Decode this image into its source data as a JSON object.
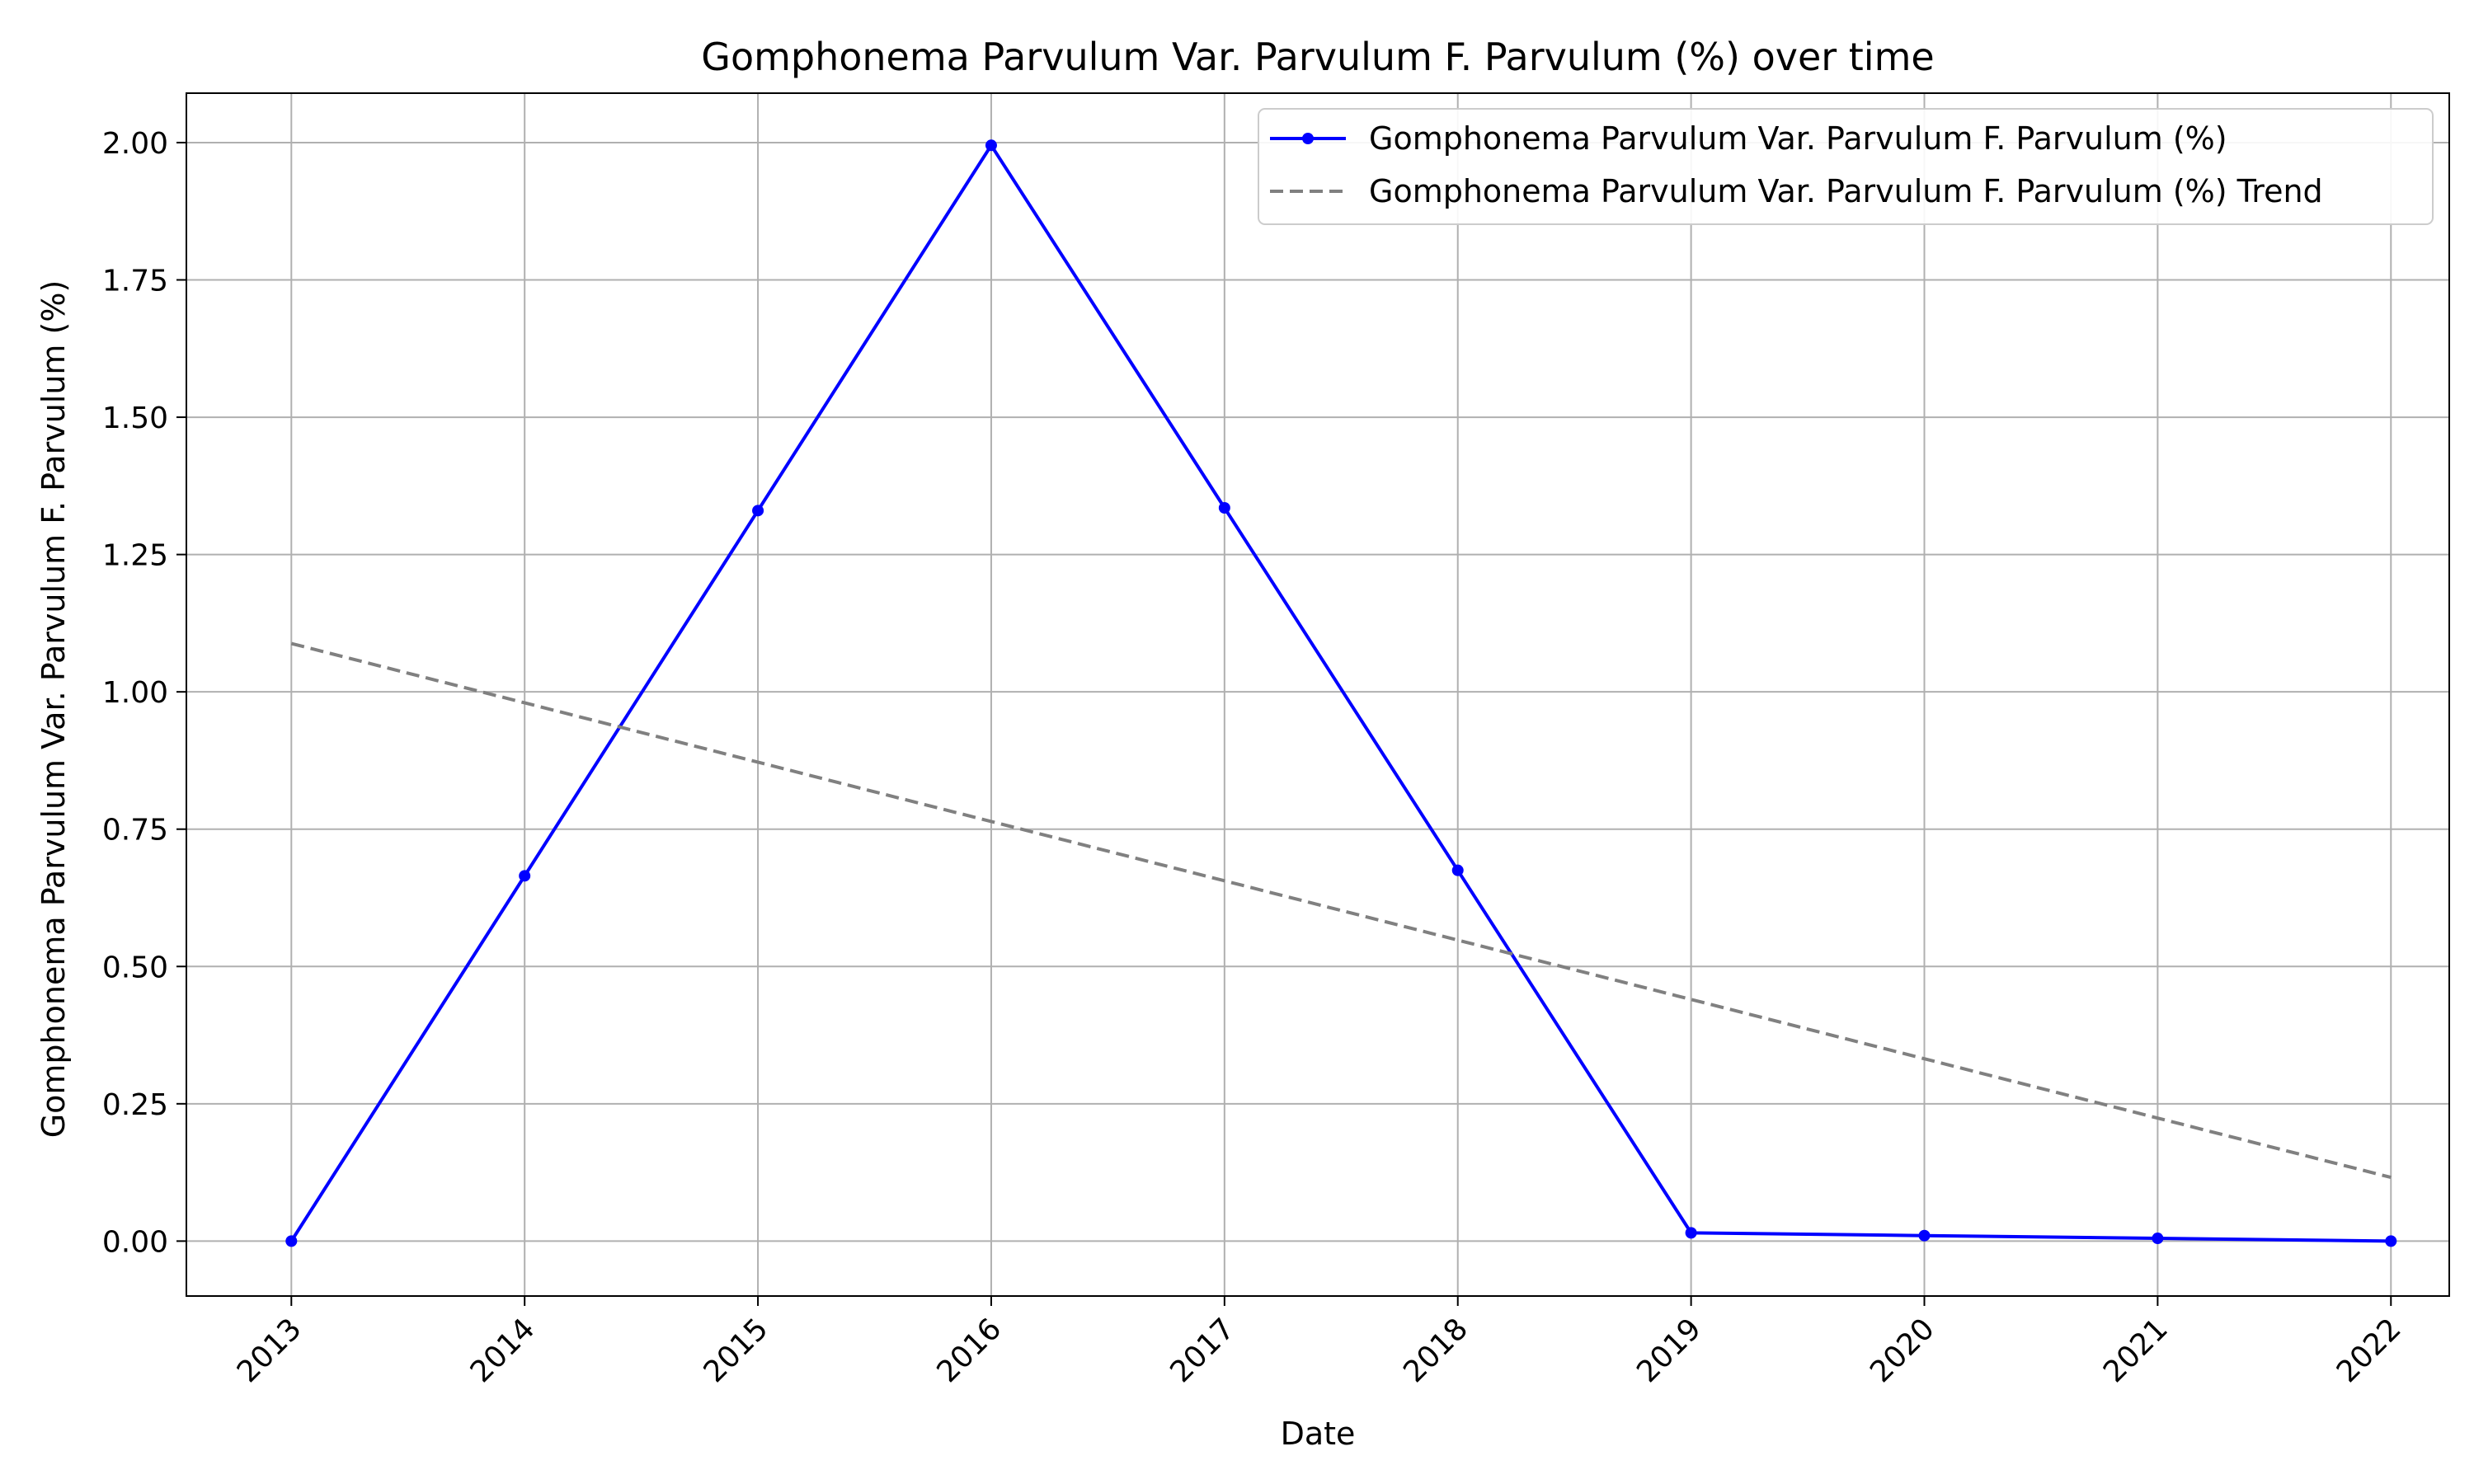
{
  "chart_data": {
    "type": "line",
    "title": "Gomphonema Parvulum Var. Parvulum F. Parvulum (%) over time",
    "xlabel": "Date",
    "ylabel": "Gomphonema Parvulum Var. Parvulum F. Parvulum (%)",
    "x": [
      "2013",
      "2014",
      "2015",
      "2016",
      "2017",
      "2018",
      "2019",
      "2020",
      "2021",
      "2022"
    ],
    "xlim": [
      2012.55,
      2022.25
    ],
    "ylim": [
      -0.1,
      2.09
    ],
    "yticks": [
      "0.00",
      "0.25",
      "0.50",
      "0.75",
      "1.00",
      "1.25",
      "1.50",
      "1.75",
      "2.00"
    ],
    "grid": true,
    "legend_position": "top-right",
    "series": [
      {
        "name": "Gomphonema Parvulum Var. Parvulum F. Parvulum (%)",
        "style": "solid-markers",
        "color": "#0000ff",
        "values": [
          0.0,
          0.665,
          1.33,
          1.995,
          1.335,
          0.675,
          0.015,
          0.01,
          0.005,
          0.0
        ]
      },
      {
        "name": "Gomphonema Parvulum Var. Parvulum F. Parvulum (%) Trend",
        "style": "dashed",
        "color": "#808080",
        "values": [
          1.088,
          0.98,
          0.872,
          0.764,
          0.656,
          0.548,
          0.44,
          0.332,
          0.224,
          0.116
        ]
      }
    ]
  }
}
